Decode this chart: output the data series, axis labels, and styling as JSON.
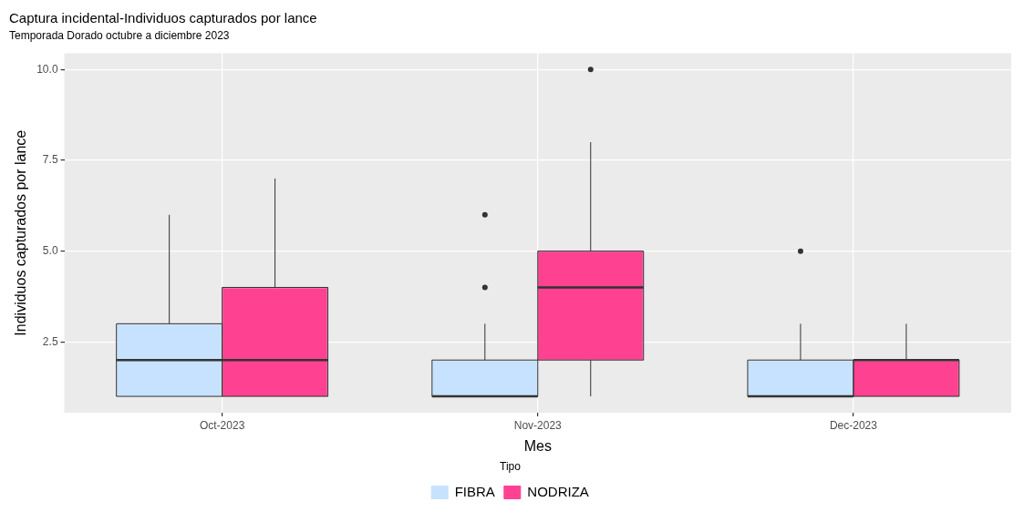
{
  "chart_data": {
    "type": "box",
    "title": "Captura incidental-Individuos capturados por lance",
    "subtitle": "Temporada Dorado octubre a diciembre 2023",
    "xlabel": "Mes",
    "ylabel": "Individuos capturados por lance",
    "legend_title": "Tipo",
    "categories": [
      "Oct-2023",
      "Nov-2023",
      "Dec-2023"
    ],
    "series": [
      {
        "name": "FIBRA",
        "color": "#c6e2ff",
        "boxes": [
          {
            "low": 1,
            "q1": 1,
            "median": 2,
            "q3": 3,
            "high": 6
          },
          {
            "low": 1,
            "q1": 1,
            "median": 1,
            "q3": 2,
            "high": 3,
            "outliers": [
              4,
              6
            ]
          },
          {
            "low": 1,
            "q1": 1,
            "median": 1,
            "q3": 2,
            "high": 3,
            "outliers": [
              5
            ]
          }
        ]
      },
      {
        "name": "NODRIZA",
        "color": "#ff4191",
        "boxes": [
          {
            "low": 1,
            "q1": 1,
            "median": 2,
            "q3": 4,
            "high": 7
          },
          {
            "low": 1,
            "q1": 2,
            "median": 4,
            "q3": 5,
            "high": 8,
            "outliers": [
              10
            ]
          },
          {
            "low": 1,
            "q1": 1,
            "median": 2,
            "q3": 2,
            "high": 3
          }
        ]
      }
    ],
    "ylim": [
      0.55,
      10.45
    ],
    "yticks": [
      2.5,
      {
        "value": 5,
        "label": "5.0"
      },
      7.5,
      {
        "value": 10,
        "label": "10.0"
      }
    ],
    "grid": true,
    "legend": "bottom"
  }
}
